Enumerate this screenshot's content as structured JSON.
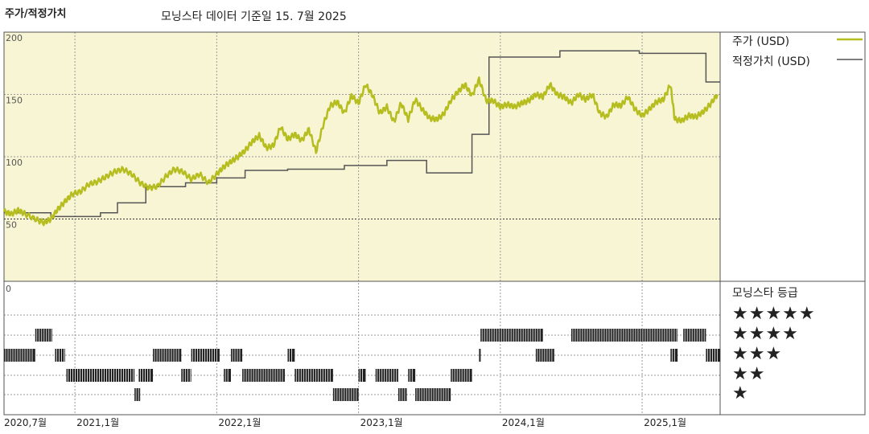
{
  "chart_data": [
    {
      "type": "line",
      "title": "주가/적정가치",
      "subtitle": "모닝스타 데이터 기준일 15. 7월 2025",
      "ylim": [
        0,
        200
      ],
      "y_ticks": [
        "200",
        "150",
        "100",
        "50"
      ],
      "x_ticks": [
        "2020,7월",
        "2021,1월",
        "2022,1월",
        "2023,1월",
        "2024,1월",
        "2025,1월"
      ],
      "x_tick_dates": [
        2020.5,
        2021.0,
        2022.0,
        2023.0,
        2024.0,
        2025.0
      ],
      "xlim": [
        2020.5,
        2025.55
      ],
      "grid": true,
      "legend_position": "right",
      "series": [
        {
          "name": "주가 (USD)",
          "color": "#b5bd1f",
          "points": [
            [
              2020.5,
              56
            ],
            [
              2020.55,
              54
            ],
            [
              2020.6,
              57
            ],
            [
              2020.65,
              54
            ],
            [
              2020.72,
              50
            ],
            [
              2020.78,
              47
            ],
            [
              2020.83,
              50
            ],
            [
              2020.88,
              58
            ],
            [
              2020.93,
              64
            ],
            [
              2020.98,
              70
            ],
            [
              2021.04,
              72
            ],
            [
              2021.1,
              78
            ],
            [
              2021.16,
              80
            ],
            [
              2021.22,
              84
            ],
            [
              2021.28,
              88
            ],
            [
              2021.34,
              90
            ],
            [
              2021.4,
              86
            ],
            [
              2021.46,
              79
            ],
            [
              2021.52,
              75
            ],
            [
              2021.58,
              76
            ],
            [
              2021.64,
              84
            ],
            [
              2021.7,
              90
            ],
            [
              2021.76,
              88
            ],
            [
              2021.82,
              82
            ],
            [
              2021.88,
              86
            ],
            [
              2021.94,
              79
            ],
            [
              2022.0,
              86
            ],
            [
              2022.05,
              92
            ],
            [
              2022.1,
              96
            ],
            [
              2022.15,
              100
            ],
            [
              2022.2,
              105
            ],
            [
              2022.25,
              112
            ],
            [
              2022.3,
              117
            ],
            [
              2022.35,
              107
            ],
            [
              2022.4,
              109
            ],
            [
              2022.45,
              124
            ],
            [
              2022.5,
              114
            ],
            [
              2022.55,
              118
            ],
            [
              2022.6,
              113
            ],
            [
              2022.65,
              122
            ],
            [
              2022.7,
              104
            ],
            [
              2022.75,
              125
            ],
            [
              2022.8,
              141
            ],
            [
              2022.85,
              144
            ],
            [
              2022.9,
              135
            ],
            [
              2022.95,
              149
            ],
            [
              2023.0,
              143
            ],
            [
              2023.05,
              158
            ],
            [
              2023.1,
              149
            ],
            [
              2023.15,
              135
            ],
            [
              2023.2,
              140
            ],
            [
              2023.25,
              128
            ],
            [
              2023.3,
              143
            ],
            [
              2023.35,
              130
            ],
            [
              2023.4,
              146
            ],
            [
              2023.45,
              138
            ],
            [
              2023.5,
              131
            ],
            [
              2023.55,
              130
            ],
            [
              2023.6,
              134
            ],
            [
              2023.65,
              145
            ],
            [
              2023.7,
              152
            ],
            [
              2023.75,
              158
            ],
            [
              2023.8,
              149
            ],
            [
              2023.85,
              162
            ],
            [
              2023.9,
              145
            ],
            [
              2023.95,
              145
            ],
            [
              2024.0,
              140
            ],
            [
              2024.05,
              142
            ],
            [
              2024.1,
              140
            ],
            [
              2024.15,
              143
            ],
            [
              2024.2,
              145
            ],
            [
              2024.25,
              150
            ],
            [
              2024.3,
              148
            ],
            [
              2024.35,
              158
            ],
            [
              2024.4,
              150
            ],
            [
              2024.45,
              148
            ],
            [
              2024.5,
              143
            ],
            [
              2024.55,
              150
            ],
            [
              2024.6,
              146
            ],
            [
              2024.65,
              150
            ],
            [
              2024.7,
              135
            ],
            [
              2024.75,
              132
            ],
            [
              2024.8,
              142
            ],
            [
              2024.85,
              141
            ],
            [
              2024.9,
              148
            ],
            [
              2024.95,
              138
            ],
            [
              2025.0,
              133
            ],
            [
              2025.05,
              138
            ],
            [
              2025.1,
              144
            ],
            [
              2025.15,
              146
            ],
            [
              2025.2,
              158
            ],
            [
              2025.23,
              130
            ],
            [
              2025.28,
              129
            ],
            [
              2025.33,
              133
            ],
            [
              2025.38,
              132
            ],
            [
              2025.43,
              136
            ],
            [
              2025.48,
              142
            ],
            [
              2025.53,
              150
            ]
          ]
        },
        {
          "name": "적정가치 (USD)",
          "color": "#555555",
          "steps": [
            [
              2020.5,
              55
            ],
            [
              2020.83,
              52
            ],
            [
              2021.18,
              55
            ],
            [
              2021.3,
              63
            ],
            [
              2021.5,
              76
            ],
            [
              2021.78,
              79
            ],
            [
              2022.0,
              83
            ],
            [
              2022.2,
              89
            ],
            [
              2022.5,
              90
            ],
            [
              2022.9,
              93
            ],
            [
              2023.2,
              97
            ],
            [
              2023.48,
              87
            ],
            [
              2023.8,
              118
            ],
            [
              2023.92,
              180
            ],
            [
              2024.42,
              185
            ],
            [
              2024.98,
              183
            ],
            [
              2025.0,
              183
            ],
            [
              2025.45,
              160
            ],
            [
              2025.55,
              160
            ]
          ]
        }
      ]
    },
    {
      "type": "timeline",
      "title": "모닝스타 등급",
      "y_axis_label": "0",
      "levels": [
        "★★★★★",
        "★★★★",
        "★★★",
        "★★",
        "★"
      ],
      "segments": [
        {
          "stars": 3,
          "from": 2020.5,
          "to": 2020.72
        },
        {
          "stars": 4,
          "from": 2020.72,
          "to": 2020.84
        },
        {
          "stars": 3,
          "from": 2020.86,
          "to": 2020.93
        },
        {
          "stars": 2,
          "from": 2020.94,
          "to": 2021.42
        },
        {
          "stars": 2,
          "from": 2021.45,
          "to": 2021.55
        },
        {
          "stars": 1,
          "from": 2021.42,
          "to": 2021.46
        },
        {
          "stars": 3,
          "from": 2021.55,
          "to": 2021.75
        },
        {
          "stars": 2,
          "from": 2021.75,
          "to": 2021.82
        },
        {
          "stars": 3,
          "from": 2021.82,
          "to": 2022.02
        },
        {
          "stars": 2,
          "from": 2022.05,
          "to": 2022.1
        },
        {
          "stars": 3,
          "from": 2022.1,
          "to": 2022.18
        },
        {
          "stars": 2,
          "from": 2022.18,
          "to": 2022.48
        },
        {
          "stars": 3,
          "from": 2022.5,
          "to": 2022.55
        },
        {
          "stars": 2,
          "from": 2022.55,
          "to": 2022.82
        },
        {
          "stars": 1,
          "from": 2022.82,
          "to": 2023.0
        },
        {
          "stars": 2,
          "from": 2023.0,
          "to": 2023.05
        },
        {
          "stars": 2,
          "from": 2023.12,
          "to": 2023.28
        },
        {
          "stars": 1,
          "from": 2023.28,
          "to": 2023.34
        },
        {
          "stars": 2,
          "from": 2023.35,
          "to": 2023.4
        },
        {
          "stars": 1,
          "from": 2023.4,
          "to": 2023.65
        },
        {
          "stars": 2,
          "from": 2023.65,
          "to": 2023.8
        },
        {
          "stars": 3,
          "from": 2023.85,
          "to": 2023.86
        },
        {
          "stars": 4,
          "from": 2023.86,
          "to": 2024.3
        },
        {
          "stars": 3,
          "from": 2024.25,
          "to": 2024.38
        },
        {
          "stars": 4,
          "from": 2024.5,
          "to": 2025.25
        },
        {
          "stars": 3,
          "from": 2025.2,
          "to": 2025.25
        },
        {
          "stars": 4,
          "from": 2025.29,
          "to": 2025.45
        },
        {
          "stars": 3,
          "from": 2025.45,
          "to": 2025.55
        }
      ]
    }
  ]
}
